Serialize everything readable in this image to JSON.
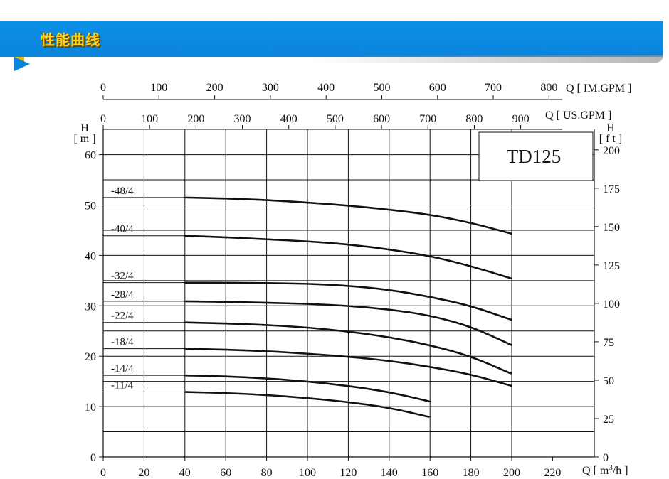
{
  "header": {
    "title": "性能曲线",
    "accent_color": "#0b84dc",
    "title_color": "#ffd21a"
  },
  "chart_data": {
    "type": "line",
    "model_label": "TD125",
    "x_bottom": {
      "label": "Q [ m³/h ]",
      "label_prefix": "Q [ m",
      "label_sup": "3",
      "label_suffix": "/h ]",
      "ticks": [
        "0",
        "20",
        "40",
        "60",
        "80",
        "100",
        "120",
        "140",
        "160",
        "180",
        "200",
        "220"
      ],
      "range": [
        0,
        240
      ]
    },
    "x_top_im": {
      "label": "Q [ IM.GPM ]",
      "ticks": [
        "0",
        "100",
        "200",
        "300",
        "400",
        "500",
        "600",
        "700",
        "800"
      ]
    },
    "x_top_us": {
      "label": "Q [ US.GPM ]",
      "ticks": [
        "0",
        "100",
        "200",
        "300",
        "400",
        "500",
        "600",
        "700",
        "800",
        "900"
      ]
    },
    "y_left": {
      "label_h": "H",
      "label_unit": "[ m ]",
      "ticks": [
        "0",
        "10",
        "20",
        "30",
        "40",
        "50",
        "60"
      ],
      "range": [
        0,
        65
      ]
    },
    "y_right": {
      "label_h": "H",
      "label_unit": "[ f t ]",
      "ticks": [
        "0",
        "25",
        "50",
        "75",
        "100",
        "125",
        "150",
        "175",
        "200"
      ]
    },
    "grid": true,
    "series": [
      {
        "name": "-48/4",
        "values": [
          [
            40,
            51.5
          ],
          [
            60,
            51.3
          ],
          [
            80,
            51.0
          ],
          [
            100,
            50.5
          ],
          [
            120,
            49.9
          ],
          [
            140,
            49.1
          ],
          [
            160,
            48.1
          ],
          [
            180,
            46.5
          ],
          [
            200,
            44.3
          ]
        ]
      },
      {
        "name": "-40/4",
        "values": [
          [
            40,
            43.9
          ],
          [
            60,
            43.6
          ],
          [
            80,
            43.2
          ],
          [
            100,
            42.8
          ],
          [
            120,
            42.2
          ],
          [
            140,
            41.2
          ],
          [
            160,
            39.9
          ],
          [
            180,
            37.9
          ],
          [
            200,
            35.4
          ]
        ]
      },
      {
        "name": "-32/4",
        "values": [
          [
            40,
            34.6
          ],
          [
            60,
            34.6
          ],
          [
            80,
            34.5
          ],
          [
            100,
            34.4
          ],
          [
            120,
            34.0
          ],
          [
            140,
            33.2
          ],
          [
            160,
            31.8
          ],
          [
            180,
            30.0
          ],
          [
            200,
            27.2
          ]
        ]
      },
      {
        "name": "-28/4",
        "values": [
          [
            40,
            30.9
          ],
          [
            60,
            30.8
          ],
          [
            80,
            30.6
          ],
          [
            100,
            30.4
          ],
          [
            120,
            30.0
          ],
          [
            140,
            29.3
          ],
          [
            160,
            28.1
          ],
          [
            180,
            25.9
          ],
          [
            200,
            22.2
          ]
        ]
      },
      {
        "name": "-22/4",
        "values": [
          [
            40,
            26.7
          ],
          [
            60,
            26.5
          ],
          [
            80,
            26.2
          ],
          [
            100,
            25.7
          ],
          [
            120,
            24.9
          ],
          [
            140,
            23.8
          ],
          [
            160,
            22.2
          ],
          [
            180,
            20.0
          ],
          [
            200,
            16.5
          ]
        ]
      },
      {
        "name": "-18/4",
        "values": [
          [
            40,
            21.5
          ],
          [
            60,
            21.3
          ],
          [
            80,
            21.0
          ],
          [
            100,
            20.5
          ],
          [
            120,
            19.9
          ],
          [
            140,
            19.1
          ],
          [
            160,
            17.9
          ],
          [
            180,
            16.4
          ],
          [
            200,
            14.1
          ]
        ]
      },
      {
        "name": "-14/4",
        "values": [
          [
            40,
            16.2
          ],
          [
            60,
            16.0
          ],
          [
            80,
            15.6
          ],
          [
            100,
            15.0
          ],
          [
            120,
            14.1
          ],
          [
            140,
            12.9
          ],
          [
            160,
            11.0
          ]
        ]
      },
      {
        "name": "-11/4",
        "values": [
          [
            40,
            12.9
          ],
          [
            60,
            12.7
          ],
          [
            80,
            12.3
          ],
          [
            100,
            11.7
          ],
          [
            120,
            10.9
          ],
          [
            140,
            9.8
          ],
          [
            160,
            7.9
          ]
        ]
      }
    ]
  }
}
